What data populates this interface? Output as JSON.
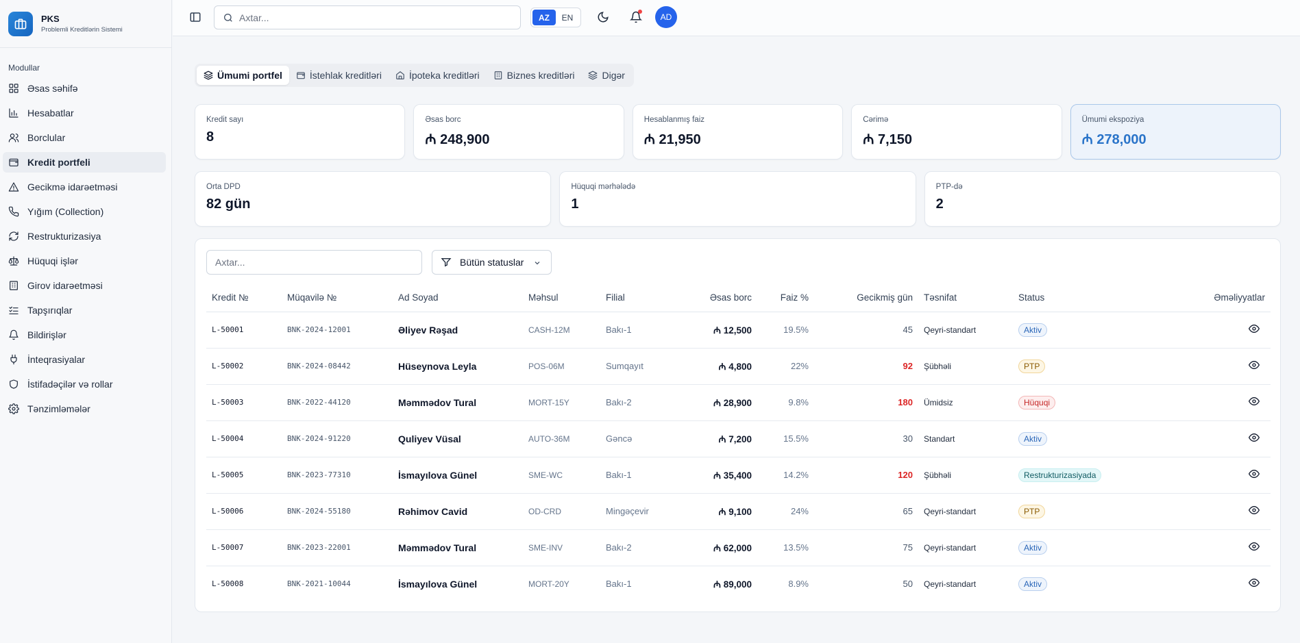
{
  "brand": {
    "name": "PKS",
    "subtitle": "Problemli Kreditlərin Sistemi"
  },
  "sidebar": {
    "section_label": "Modullar",
    "items": [
      {
        "label": "Əsas səhifə",
        "icon": "dashboard-icon"
      },
      {
        "label": "Hesabatlar",
        "icon": "bar-chart-icon"
      },
      {
        "label": "Borclular",
        "icon": "users-icon"
      },
      {
        "label": "Kredit portfeli",
        "icon": "wallet-icon",
        "active": true
      },
      {
        "label": "Gecikmə idarəetməsi",
        "icon": "alert-triangle-icon"
      },
      {
        "label": "Yığım (Collection)",
        "icon": "phone-icon"
      },
      {
        "label": "Restrukturizasiya",
        "icon": "refresh-icon"
      },
      {
        "label": "Hüquqi işlər",
        "icon": "scale-icon"
      },
      {
        "label": "Girov idarəetməsi",
        "icon": "building-icon"
      },
      {
        "label": "Tapşırıqlar",
        "icon": "checklist-icon"
      },
      {
        "label": "Bildirişlər",
        "icon": "bell-icon"
      },
      {
        "label": "İnteqrasiyalar",
        "icon": "plug-icon"
      },
      {
        "label": "İstifadəçilər və rollar",
        "icon": "shield-icon"
      },
      {
        "label": "Tənzimləmələr",
        "icon": "gear-icon"
      }
    ]
  },
  "topbar": {
    "search_placeholder": "Axtar...",
    "lang_az": "AZ",
    "lang_en": "EN",
    "active_lang": "AZ",
    "avatar_initials": "AD",
    "has_notification": true
  },
  "tabs": [
    {
      "label": "Ümumi portfel",
      "icon": "layers-icon",
      "active": true
    },
    {
      "label": "İstehlak kreditləri",
      "icon": "wallet-icon"
    },
    {
      "label": "İpoteka kreditləri",
      "icon": "home-icon"
    },
    {
      "label": "Biznes kreditləri",
      "icon": "building-icon"
    },
    {
      "label": "Digər",
      "icon": "layers-icon"
    }
  ],
  "kpis_row1": [
    {
      "label": "Kredit sayı",
      "value": "8"
    },
    {
      "label": "Əsas borc",
      "value": "₼ 248,900"
    },
    {
      "label": "Hesablanmış faiz",
      "value": "₼ 21,950"
    },
    {
      "label": "Cərimə",
      "value": "₼ 7,150"
    },
    {
      "label": "Ümumi ekspoziya",
      "value": "₼ 278,000",
      "highlight": true
    }
  ],
  "kpis_row2": [
    {
      "label": "Orta DPD",
      "value": "82 gün"
    },
    {
      "label": "Hüquqi mərhələdə",
      "value": "1"
    },
    {
      "label": "PTP-də",
      "value": "2"
    }
  ],
  "filters": {
    "search_placeholder": "Axtar...",
    "status_label": "Bütün statuslar"
  },
  "table": {
    "headers": {
      "loan_no": "Kredit №",
      "contract_no": "Müqavilə №",
      "name": "Ad Soyad",
      "product": "Məhsul",
      "branch": "Filial",
      "principal": "Əsas borc",
      "rate": "Faiz %",
      "dpd": "Gecikmiş gün",
      "classification": "Təsnifat",
      "status": "Status",
      "actions": "Əməliyyatlar"
    },
    "rows": [
      {
        "loan_no": "L-50001",
        "contract_no": "BNK-2024-12001",
        "name": "Əliyev Rəşad",
        "product": "CASH-12M",
        "branch": "Bakı-1",
        "principal": "₼ 12,500",
        "rate": "19.5%",
        "dpd": "45",
        "dpd_red": false,
        "classification": "Qeyri-standart",
        "status": "Aktiv",
        "status_type": "aktiv"
      },
      {
        "loan_no": "L-50002",
        "contract_no": "BNK-2024-08442",
        "name": "Hüseynova Leyla",
        "product": "POS-06M",
        "branch": "Sumqayıt",
        "principal": "₼ 4,800",
        "rate": "22%",
        "dpd": "92",
        "dpd_red": true,
        "classification": "Şübhəli",
        "status": "PTP",
        "status_type": "ptp"
      },
      {
        "loan_no": "L-50003",
        "contract_no": "BNK-2022-44120",
        "name": "Məmmədov Tural",
        "product": "MORT-15Y",
        "branch": "Bakı-2",
        "principal": "₼ 28,900",
        "rate": "9.8%",
        "dpd": "180",
        "dpd_red": true,
        "classification": "Ümidsiz",
        "status": "Hüquqi",
        "status_type": "huquqi"
      },
      {
        "loan_no": "L-50004",
        "contract_no": "BNK-2024-91220",
        "name": "Quliyev Vüsal",
        "product": "AUTO-36M",
        "branch": "Gəncə",
        "principal": "₼ 7,200",
        "rate": "15.5%",
        "dpd": "30",
        "dpd_red": false,
        "classification": "Standart",
        "status": "Aktiv",
        "status_type": "aktiv"
      },
      {
        "loan_no": "L-50005",
        "contract_no": "BNK-2023-77310",
        "name": "İsmayılova Günel",
        "product": "SME-WC",
        "branch": "Bakı-1",
        "principal": "₼ 35,400",
        "rate": "14.2%",
        "dpd": "120",
        "dpd_red": true,
        "classification": "Şübhəli",
        "status": "Restrukturizasiyada",
        "status_type": "restr"
      },
      {
        "loan_no": "L-50006",
        "contract_no": "BNK-2024-55180",
        "name": "Rəhimov Cavid",
        "product": "OD-CRD",
        "branch": "Mingəçevir",
        "principal": "₼ 9,100",
        "rate": "24%",
        "dpd": "65",
        "dpd_red": false,
        "classification": "Qeyri-standart",
        "status": "PTP",
        "status_type": "ptp"
      },
      {
        "loan_no": "L-50007",
        "contract_no": "BNK-2023-22001",
        "name": "Məmmədov Tural",
        "product": "SME-INV",
        "branch": "Bakı-2",
        "principal": "₼ 62,000",
        "rate": "13.5%",
        "dpd": "75",
        "dpd_red": false,
        "classification": "Qeyri-standart",
        "status": "Aktiv",
        "status_type": "aktiv"
      },
      {
        "loan_no": "L-50008",
        "contract_no": "BNK-2021-10044",
        "name": "İsmayılova Günel",
        "product": "MORT-20Y",
        "branch": "Bakı-1",
        "principal": "₼ 89,000",
        "rate": "8.9%",
        "dpd": "50",
        "dpd_red": false,
        "classification": "Qeyri-standart",
        "status": "Aktiv",
        "status_type": "aktiv"
      }
    ]
  },
  "colors": {
    "accent": "#2563eb",
    "kpi_highlight": "#2a74c9",
    "danger": "#dc2626"
  }
}
